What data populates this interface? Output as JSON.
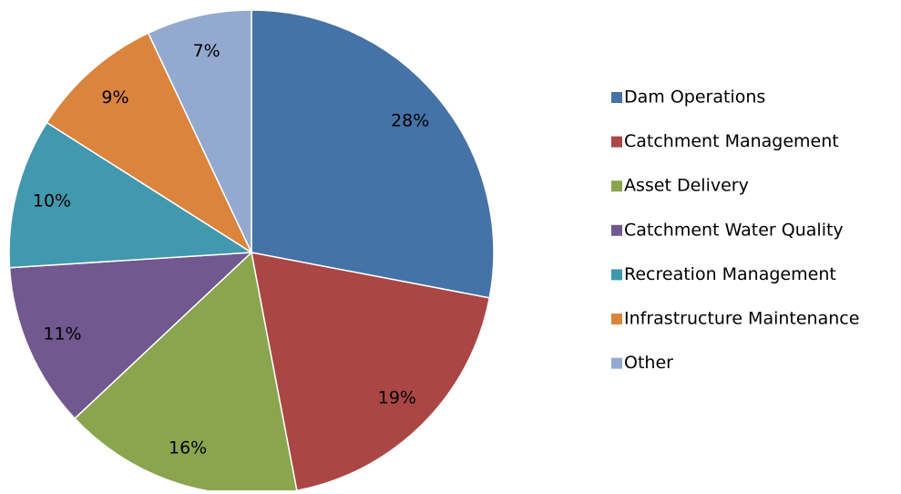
{
  "chart_data": {
    "type": "pie",
    "categories": [
      "Dam Operations",
      "Catchment Management",
      "Asset Delivery",
      "Catchment Water Quality",
      "Recreation Management",
      "Infrastructure Maintenance",
      "Other"
    ],
    "values": [
      28,
      19,
      16,
      11,
      10,
      9,
      7
    ],
    "value_labels": [
      "28%",
      "19%",
      "16%",
      "11%",
      "10%",
      "9%",
      "7%"
    ],
    "colors": [
      "#4572a7",
      "#aa4643",
      "#89a54e",
      "#71588f",
      "#4198af",
      "#db843d",
      "#93a9cf"
    ],
    "legend": "right"
  }
}
